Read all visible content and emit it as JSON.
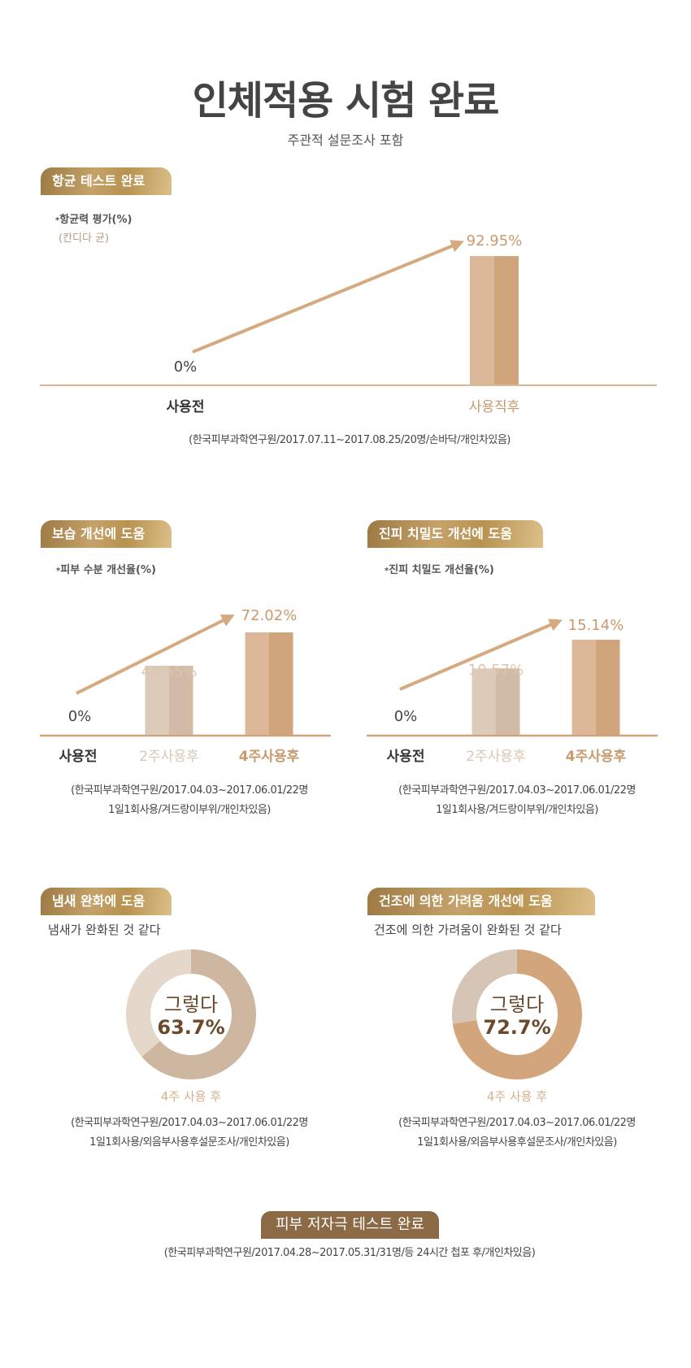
{
  "header": {
    "title": "인체적용 시험 완료",
    "subtitle": "주관적 설문조사 포함"
  },
  "colors": {
    "gold": "#c99a6e",
    "bar_light": "#dcb898",
    "bar_dark": "#d1a57b",
    "bar2_light": "#ddcbba",
    "bar2_dark": "#d2bba6",
    "arrow": "#d6a97f",
    "baseline": "#d8b996",
    "donut_text": "#6b4a2b",
    "badge_brown": "#8b6a45"
  },
  "chart_data": [
    {
      "type": "bar",
      "badge": "항균 테스트 완료",
      "ylabel": "항균력 평가(%)",
      "note": "(칸디다 균)",
      "categories": [
        "사용전",
        "사용직후"
      ],
      "values": [
        0,
        92.95
      ],
      "value_labels": [
        "0%",
        "92.95%"
      ],
      "footnote": "(한국피부과학연구원/2017.07.11~2017.08.25/20명/손바닥/개인차있음)"
    },
    {
      "type": "bar",
      "badge": "보습 개선에 도움",
      "ylabel": "피부 수분 개선율(%)",
      "categories": [
        "사용전",
        "2주사용후",
        "4주사용후"
      ],
      "values": [
        0,
        48.55,
        72.02
      ],
      "value_labels": [
        "0%",
        "48.55%",
        "72.02%"
      ],
      "footnote": [
        "(한국피부과학연구원/2017.04.03~2017.06.01/22명",
        "1일1회사용/겨드랑이부위/개인차있음)"
      ]
    },
    {
      "type": "bar",
      "badge": "진피 치밀도 개선에 도움",
      "ylabel": "진피 치밀도 개선율(%)",
      "categories": [
        "사용전",
        "2주사용후",
        "4주사용후"
      ],
      "values": [
        0,
        10.57,
        15.14
      ],
      "value_labels": [
        "0%",
        "10.57%",
        "15.14%"
      ],
      "footnote": [
        "(한국피부과학연구원/2017.04.03~2017.06.01/22명",
        "1일1회사용/겨드랑이부위/개인차있음)"
      ]
    },
    {
      "type": "pie",
      "badge": "냄새 완화에 도움",
      "question": "냄새가 완화된 것 같다",
      "center_label": "그렇다",
      "value": 63.7,
      "value_label": "63.7%",
      "segment_colors": [
        "#cdb7a0",
        "#e5d7ca"
      ],
      "caption": "4주 사용 후",
      "footnote": [
        "(한국피부과학연구원/2017.04.03~2017.06.01/22명",
        "1일1회사용/외음부사용후설문조사/개인차있음)"
      ]
    },
    {
      "type": "pie",
      "badge": "건조에 의한 가려움 개선에 도움",
      "question": "건조에 의한 가려움이 완화된 것 같다",
      "center_label": "그렇다",
      "value": 72.7,
      "value_label": "72.7%",
      "segment_colors": [
        "#d3a57c",
        "#d6c4b4"
      ],
      "caption": "4주 사용 후",
      "footnote": [
        "(한국피부과학연구원/2017.04.03~2017.06.01/22명",
        "1일1회사용/외음부사용후설문조사/개인차있음)"
      ]
    }
  ],
  "footer": {
    "badge": "피부 저자극 테스트 완료",
    "footnote": "(한국피부과학연구원/2017.04.28~2017.05.31/31명/등 24시간 첩포 후/개인차있음)"
  }
}
